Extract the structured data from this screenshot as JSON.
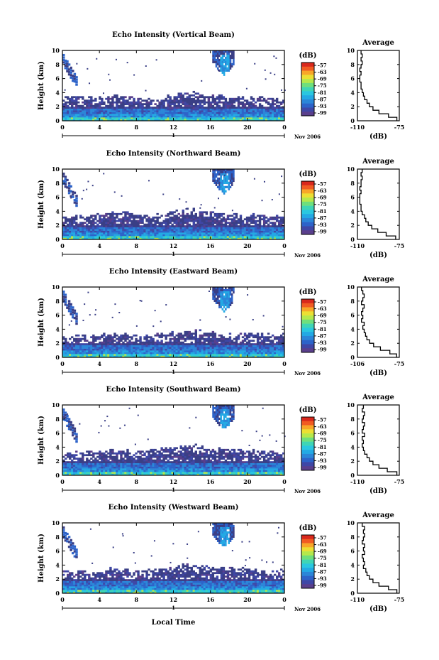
{
  "colors": {
    "scale": [
      "#5a3f8c",
      "#3f47a6",
      "#2d63c9",
      "#2b86d8",
      "#23a9e4",
      "#2ac7e0",
      "#3fd5b5",
      "#6fdf7c",
      "#b5e84c",
      "#ecdf33",
      "#f8a628",
      "#f15b22",
      "#d9281c"
    ],
    "fill": "#3a3f86",
    "line": "#000000"
  },
  "shared": {
    "ylabel": "Height (km)",
    "date_label": "Nov 2006",
    "day_label": "1",
    "colorbar_unit": "(dB)",
    "colorbar_ticks": [
      "-57",
      "-63",
      "-69",
      "-75",
      "-81",
      "-87",
      "-93",
      "-99"
    ],
    "avg_title": "Average",
    "avg_xlabel": "(dB)",
    "xlabel_bottom": "Local Time"
  },
  "chart_data": [
    {
      "type": "heatmap",
      "title": "Echo Intensity (Vertical Beam)",
      "xlim": [
        0,
        24
      ],
      "ylim": [
        0,
        10
      ],
      "x_ticks": [
        "0",
        "4",
        "8",
        "12",
        "16",
        "20",
        "0"
      ],
      "y_ticks": [
        "0",
        "2",
        "4",
        "6",
        "8",
        "10"
      ],
      "layer_top_km": [
        3.1,
        3.3,
        3.2,
        3.1,
        3.2,
        3.4,
        3.3,
        3.2,
        3.1,
        3.0,
        3.1,
        3.3,
        3.6,
        3.8,
        3.9,
        3.7,
        3.5,
        3.4,
        3.3,
        3.2,
        3.2,
        3.1,
        3.0,
        3.0,
        3.0
      ],
      "average_profile": {
        "type": "line",
        "xlim": [
          -110,
          -75
        ],
        "x_ticks": [
          "-110",
          "-75"
        ],
        "y_ticks": [
          "0",
          "2",
          "4",
          "6",
          "8",
          "10"
        ],
        "height_km": [
          0,
          0.5,
          1,
          1.5,
          2,
          2.5,
          3,
          3.5,
          4,
          4.5,
          5,
          5.5,
          6,
          6.5,
          7,
          7.5,
          8,
          8.5,
          9,
          9.5
        ],
        "db": [
          -77,
          -84,
          -92,
          -97,
          -100,
          -102,
          -104,
          -105,
          -106,
          -107,
          -107,
          -108,
          -108,
          -107,
          -108,
          -107,
          -106,
          -107,
          -106,
          -107
        ]
      }
    },
    {
      "type": "heatmap",
      "title": "Echo Intensity (Northward Beam)",
      "xlim": [
        0,
        24
      ],
      "ylim": [
        0,
        10
      ],
      "x_ticks": [
        "0",
        "4",
        "8",
        "12",
        "16",
        "20",
        "0"
      ],
      "y_ticks": [
        "0",
        "2",
        "4",
        "6",
        "8",
        "10"
      ],
      "layer_top_km": [
        3.0,
        3.1,
        3.2,
        3.3,
        3.5,
        3.7,
        3.8,
        3.6,
        3.4,
        3.3,
        3.4,
        3.6,
        3.9,
        4.1,
        4.2,
        4.0,
        3.8,
        3.6,
        3.5,
        3.4,
        3.3,
        3.3,
        3.3,
        3.3,
        3.3
      ],
      "average_profile": {
        "type": "line",
        "xlim": [
          -110,
          -75
        ],
        "x_ticks": [
          "-110",
          "-75"
        ],
        "y_ticks": [
          "0",
          "2",
          "4",
          "6",
          "8",
          "10"
        ],
        "height_km": [
          0,
          0.5,
          1,
          1.5,
          2,
          2.5,
          3,
          3.5,
          4,
          4.5,
          5,
          5.5,
          6,
          6.5,
          7,
          7.5,
          8,
          8.5,
          9,
          9.5
        ],
        "db": [
          -78,
          -86,
          -93,
          -98,
          -101,
          -103,
          -104,
          -106,
          -107,
          -107,
          -108,
          -108,
          -108,
          -107,
          -108,
          -107,
          -107,
          -106,
          -107,
          -106
        ]
      }
    },
    {
      "type": "heatmap",
      "title": "Echo Intensity (Eastward Beam)",
      "xlim": [
        0,
        24
      ],
      "ylim": [
        0,
        10
      ],
      "x_ticks": [
        "0",
        "4",
        "8",
        "12",
        "16",
        "20",
        "0"
      ],
      "y_ticks": [
        "0",
        "2",
        "4",
        "6",
        "8",
        "10"
      ],
      "layer_top_km": [
        3.0,
        2.9,
        2.9,
        3.0,
        3.1,
        3.2,
        3.2,
        3.1,
        3.0,
        3.0,
        3.1,
        3.3,
        3.5,
        3.6,
        3.7,
        3.5,
        3.4,
        3.3,
        3.3,
        3.4,
        3.5,
        3.4,
        3.3,
        3.2,
        3.2
      ],
      "average_profile": {
        "type": "line",
        "xlim": [
          -106,
          -75
        ],
        "x_ticks": [
          "-106",
          "-75"
        ],
        "y_ticks": [
          "0",
          "2",
          "4",
          "6",
          "8",
          "10"
        ],
        "height_km": [
          0,
          0.5,
          1,
          1.5,
          2,
          2.5,
          3,
          3.5,
          4,
          4.5,
          5,
          5.5,
          6,
          6.5,
          7,
          7.5,
          8,
          8.5,
          9,
          9.5
        ],
        "db": [
          -77,
          -82,
          -89,
          -94,
          -97,
          -99,
          -100,
          -101,
          -102,
          -101,
          -103,
          -102,
          -103,
          -102,
          -101,
          -103,
          -102,
          -101,
          -102,
          -103
        ]
      }
    },
    {
      "type": "heatmap",
      "title": "Echo Intensity (Southward Beam)",
      "xlim": [
        0,
        24
      ],
      "ylim": [
        0,
        10
      ],
      "x_ticks": [
        "0",
        "4",
        "8",
        "12",
        "16",
        "20",
        "0"
      ],
      "y_ticks": [
        "0",
        "2",
        "4",
        "6",
        "8",
        "10"
      ],
      "layer_top_km": [
        3.0,
        3.1,
        3.1,
        3.2,
        3.3,
        3.4,
        3.4,
        3.3,
        3.2,
        3.3,
        3.5,
        3.7,
        3.9,
        4.0,
        4.1,
        4.0,
        3.8,
        3.6,
        3.5,
        3.4,
        3.4,
        3.3,
        3.3,
        3.2,
        3.2
      ],
      "average_profile": {
        "type": "line",
        "xlim": [
          -110,
          -75
        ],
        "x_ticks": [
          "-110",
          "-75"
        ],
        "y_ticks": [
          "0",
          "2",
          "4",
          "6",
          "8",
          "10"
        ],
        "height_km": [
          0,
          0.5,
          1,
          1.5,
          2,
          2.5,
          3,
          3.5,
          4,
          4.5,
          5,
          5.5,
          6,
          6.5,
          7,
          7.5,
          8,
          8.5,
          9,
          9.5
        ],
        "db": [
          -77,
          -85,
          -92,
          -97,
          -100,
          -102,
          -104,
          -105,
          -106,
          -105,
          -106,
          -104,
          -106,
          -105,
          -104,
          -106,
          -105,
          -104,
          -106,
          -105
        ]
      }
    },
    {
      "type": "heatmap",
      "title": "Echo Intensity (Westward Beam)",
      "xlim": [
        0,
        24
      ],
      "ylim": [
        0,
        10
      ],
      "x_ticks": [
        "0",
        "4",
        "8",
        "12",
        "16",
        "20",
        "0"
      ],
      "y_ticks": [
        "0",
        "2",
        "4",
        "6",
        "8",
        "10"
      ],
      "layer_top_km": [
        3.0,
        3.0,
        3.1,
        3.1,
        3.2,
        3.3,
        3.3,
        3.2,
        3.1,
        3.1,
        3.2,
        3.4,
        3.6,
        3.8,
        3.9,
        3.8,
        3.6,
        3.5,
        3.4,
        3.4,
        3.3,
        3.2,
        3.2,
        3.2,
        3.2
      ],
      "average_profile": {
        "type": "line",
        "xlim": [
          -110,
          -75
        ],
        "x_ticks": [
          "-110",
          "-75"
        ],
        "y_ticks": [
          "0",
          "2",
          "4",
          "6",
          "8",
          "10"
        ],
        "height_km": [
          0,
          0.5,
          1,
          1.5,
          2,
          2.5,
          3,
          3.5,
          4,
          4.5,
          5,
          5.5,
          6,
          6.5,
          7,
          7.5,
          8,
          8.5,
          9,
          9.5
        ],
        "db": [
          -77,
          -84,
          -92,
          -97,
          -100,
          -102,
          -103,
          -105,
          -104,
          -105,
          -106,
          -104,
          -105,
          -104,
          -106,
          -105,
          -104,
          -105,
          -104,
          -106
        ]
      }
    }
  ]
}
